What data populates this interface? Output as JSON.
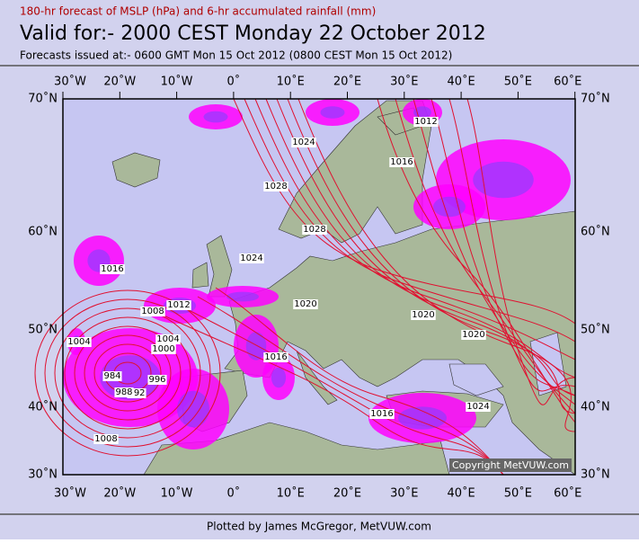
{
  "header": {
    "subtitle": "180-hr forecast of MSLP (hPa) and 6-hr accumulated rainfall (mm)",
    "title": "Valid for:- 2000 CEST Monday 22 October 2012",
    "issued": "Forecasts issued at:- 0600 GMT Mon 15 Oct 2012 (0800 CEST Mon 15 Oct 2012)"
  },
  "map": {
    "lon_labels": [
      "30˚W",
      "20˚W",
      "10˚W",
      "0˚",
      "10˚E",
      "20˚E",
      "30˚E",
      "40˚E",
      "50˚E",
      "60˚E"
    ],
    "lat_labels": [
      "70˚N",
      "60˚N",
      "50˚N",
      "40˚N",
      "30˚N"
    ],
    "isobar_labels": [
      "1024",
      "1012",
      "1016",
      "1028",
      "1028",
      "1024",
      "1016",
      "1012",
      "1008",
      "1004",
      "1000",
      "1004",
      "996",
      "992",
      "988",
      "984",
      "1008",
      "1020",
      "1020",
      "1020",
      "1016",
      "1016",
      "1024"
    ],
    "copyright": "Copyright MetVUW.com"
  },
  "footer": {
    "credit": "Plotted by James McGregor, MetVUW.com"
  }
}
